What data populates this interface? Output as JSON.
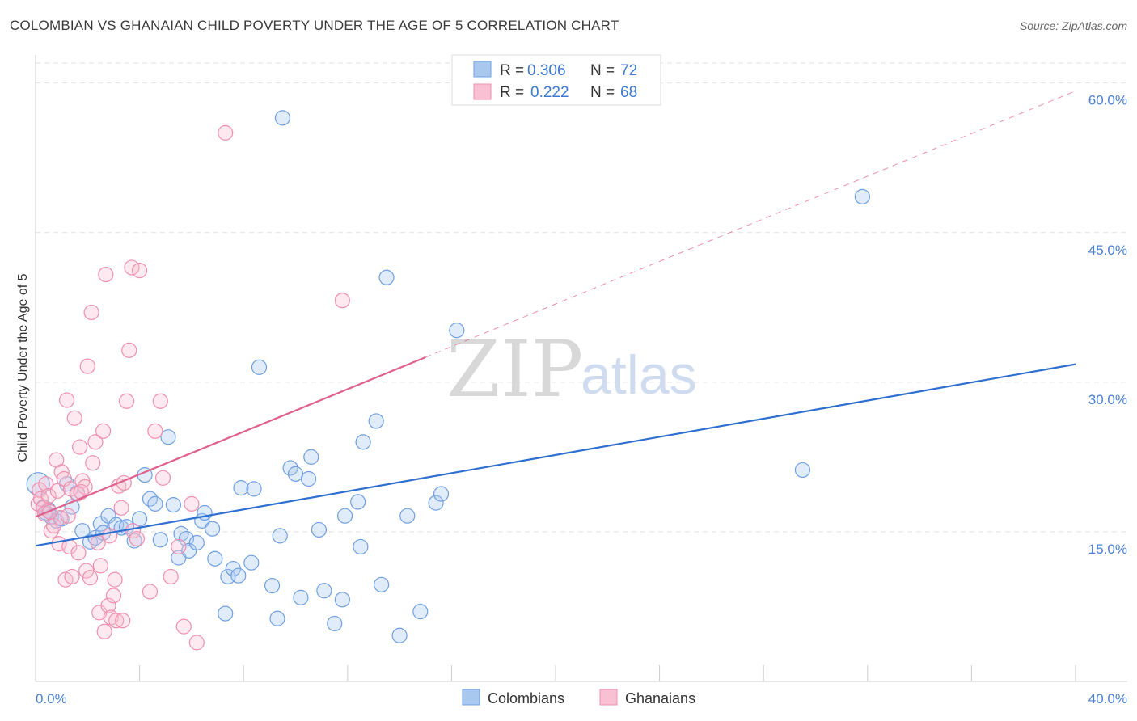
{
  "title": "COLOMBIAN VS GHANAIAN CHILD POVERTY UNDER THE AGE OF 5 CORRELATION CHART",
  "source": "Source: ZipAtlas.com",
  "watermark": {
    "zip": "ZIP",
    "atlas": "atlas"
  },
  "legend": {
    "r_label": "R =",
    "n_label": "N =",
    "rows": [
      {
        "name": "Colombians",
        "r": "0.306",
        "n": "72",
        "color": "#a8c8f0",
        "stroke": "#6f9fe0"
      },
      {
        "name": "Ghanaians",
        "r": "0.222",
        "n": "68",
        "color": "#f8c0d2",
        "stroke": "#ee8fae"
      }
    ]
  },
  "chart_data": {
    "type": "scatter",
    "title": "COLOMBIAN VS GHANAIAN CHILD POVERTY UNDER THE AGE OF 5 CORRELATION CHART",
    "xlabel": "",
    "ylabel": "Child Poverty Under the Age of 5",
    "xlim": [
      0,
      40
    ],
    "ylim": [
      0,
      62
    ],
    "x_tick_labels": [
      "0.0%",
      "40.0%"
    ],
    "y_ticks": [
      15,
      30,
      45,
      60
    ],
    "y_tick_labels": [
      "15.0%",
      "30.0%",
      "45.0%",
      "60.0%"
    ],
    "grid": true,
    "series": [
      {
        "name": "Colombians",
        "color": "#6f9fe0",
        "trend": {
          "x": [
            0,
            40
          ],
          "y": [
            13.6,
            31.8
          ],
          "style": "solid",
          "color": "#2f6fd0"
        },
        "points": [
          [
            0.1,
            19.8
          ],
          [
            0.3,
            17.5
          ],
          [
            0.4,
            16.9
          ],
          [
            0.5,
            17.2
          ],
          [
            0.6,
            16.5
          ],
          [
            0.8,
            16.1
          ],
          [
            1.0,
            16.3
          ],
          [
            1.2,
            19.8
          ],
          [
            1.4,
            17.5
          ],
          [
            1.6,
            18.9
          ],
          [
            1.8,
            15.1
          ],
          [
            2.1,
            14.0
          ],
          [
            2.3,
            14.4
          ],
          [
            2.5,
            15.8
          ],
          [
            2.6,
            14.9
          ],
          [
            2.8,
            16.6
          ],
          [
            3.1,
            15.7
          ],
          [
            3.3,
            15.4
          ],
          [
            3.5,
            15.5
          ],
          [
            3.8,
            14.1
          ],
          [
            4.0,
            16.3
          ],
          [
            4.2,
            20.7
          ],
          [
            4.4,
            18.3
          ],
          [
            4.6,
            17.8
          ],
          [
            4.8,
            14.2
          ],
          [
            5.1,
            24.5
          ],
          [
            5.3,
            17.7
          ],
          [
            5.5,
            12.4
          ],
          [
            5.6,
            14.8
          ],
          [
            5.8,
            14.3
          ],
          [
            5.9,
            13.1
          ],
          [
            6.2,
            13.9
          ],
          [
            6.4,
            16.1
          ],
          [
            6.5,
            16.9
          ],
          [
            6.8,
            15.3
          ],
          [
            6.9,
            12.3
          ],
          [
            7.3,
            6.8
          ],
          [
            7.4,
            10.5
          ],
          [
            7.6,
            11.3
          ],
          [
            7.8,
            10.6
          ],
          [
            7.9,
            19.4
          ],
          [
            8.3,
            11.9
          ],
          [
            8.4,
            19.3
          ],
          [
            8.6,
            31.5
          ],
          [
            9.1,
            9.6
          ],
          [
            9.3,
            6.3
          ],
          [
            9.4,
            14.6
          ],
          [
            9.5,
            56.5
          ],
          [
            9.8,
            21.4
          ],
          [
            10.0,
            20.8
          ],
          [
            10.2,
            8.4
          ],
          [
            10.5,
            20.3
          ],
          [
            10.6,
            22.5
          ],
          [
            10.9,
            15.2
          ],
          [
            11.1,
            9.1
          ],
          [
            11.5,
            5.8
          ],
          [
            11.8,
            8.2
          ],
          [
            11.9,
            16.6
          ],
          [
            12.4,
            18.0
          ],
          [
            12.6,
            24.0
          ],
          [
            12.5,
            13.5
          ],
          [
            13.1,
            26.1
          ],
          [
            13.3,
            9.7
          ],
          [
            13.5,
            40.5
          ],
          [
            14.0,
            4.6
          ],
          [
            14.3,
            16.6
          ],
          [
            14.8,
            7.0
          ],
          [
            15.4,
            17.9
          ],
          [
            15.6,
            18.8
          ],
          [
            16.2,
            35.2
          ],
          [
            29.5,
            21.2
          ],
          [
            31.8,
            48.6
          ]
        ]
      },
      {
        "name": "Ghanaians",
        "color": "#ee8fae",
        "trend": {
          "x": [
            0,
            15.0
          ],
          "y": [
            16.5,
            32.5
          ],
          "style": "solid",
          "color": "#e0608c",
          "extension": {
            "x": [
              15.0,
              40
            ],
            "y": [
              32.5,
              59.2
            ],
            "style": "dashed"
          }
        },
        "points": [
          [
            0.1,
            17.8
          ],
          [
            0.15,
            19.2
          ],
          [
            0.2,
            18.3
          ],
          [
            0.3,
            17.4
          ],
          [
            0.35,
            16.8
          ],
          [
            0.4,
            19.8
          ],
          [
            0.5,
            18.6
          ],
          [
            0.6,
            15.1
          ],
          [
            0.7,
            15.6
          ],
          [
            0.8,
            22.2
          ],
          [
            0.85,
            19.1
          ],
          [
            0.9,
            13.8
          ],
          [
            0.95,
            16.4
          ],
          [
            1.0,
            21.0
          ],
          [
            1.1,
            20.3
          ],
          [
            1.15,
            10.2
          ],
          [
            1.2,
            28.2
          ],
          [
            1.3,
            13.5
          ],
          [
            1.35,
            19.3
          ],
          [
            1.4,
            10.5
          ],
          [
            1.5,
            26.4
          ],
          [
            1.6,
            18.8
          ],
          [
            1.65,
            12.9
          ],
          [
            1.7,
            23.5
          ],
          [
            1.8,
            20.1
          ],
          [
            1.9,
            19.5
          ],
          [
            1.95,
            11.1
          ],
          [
            2.0,
            31.6
          ],
          [
            2.1,
            10.4
          ],
          [
            2.15,
            37.0
          ],
          [
            2.2,
            21.9
          ],
          [
            2.3,
            24.0
          ],
          [
            2.4,
            13.9
          ],
          [
            2.45,
            6.9
          ],
          [
            2.5,
            11.6
          ],
          [
            2.6,
            25.1
          ],
          [
            2.65,
            5.0
          ],
          [
            2.7,
            40.8
          ],
          [
            2.8,
            7.6
          ],
          [
            2.9,
            6.4
          ],
          [
            3.0,
            8.6
          ],
          [
            3.05,
            10.2
          ],
          [
            3.1,
            6.1
          ],
          [
            3.2,
            19.6
          ],
          [
            3.3,
            17.4
          ],
          [
            3.35,
            6.1
          ],
          [
            3.4,
            19.9
          ],
          [
            3.5,
            28.1
          ],
          [
            3.6,
            33.2
          ],
          [
            3.7,
            41.5
          ],
          [
            3.75,
            15.1
          ],
          [
            3.9,
            14.3
          ],
          [
            4.0,
            41.2
          ],
          [
            4.4,
            9.0
          ],
          [
            4.6,
            25.1
          ],
          [
            4.8,
            28.1
          ],
          [
            4.9,
            20.4
          ],
          [
            5.2,
            10.5
          ],
          [
            5.5,
            13.5
          ],
          [
            5.7,
            5.5
          ],
          [
            6.0,
            17.8
          ],
          [
            6.2,
            3.9
          ],
          [
            7.3,
            55.0
          ],
          [
            11.8,
            38.2
          ],
          [
            1.25,
            16.6
          ],
          [
            0.55,
            17.0
          ],
          [
            2.85,
            14.6
          ],
          [
            1.75,
            19.0
          ]
        ]
      }
    ]
  },
  "bottom_legend": [
    {
      "label": "Colombians",
      "color": "#a8c8f0",
      "stroke": "#6f9fe0"
    },
    {
      "label": "Ghanaians",
      "color": "#f8c0d2",
      "stroke": "#ee8fae"
    }
  ]
}
